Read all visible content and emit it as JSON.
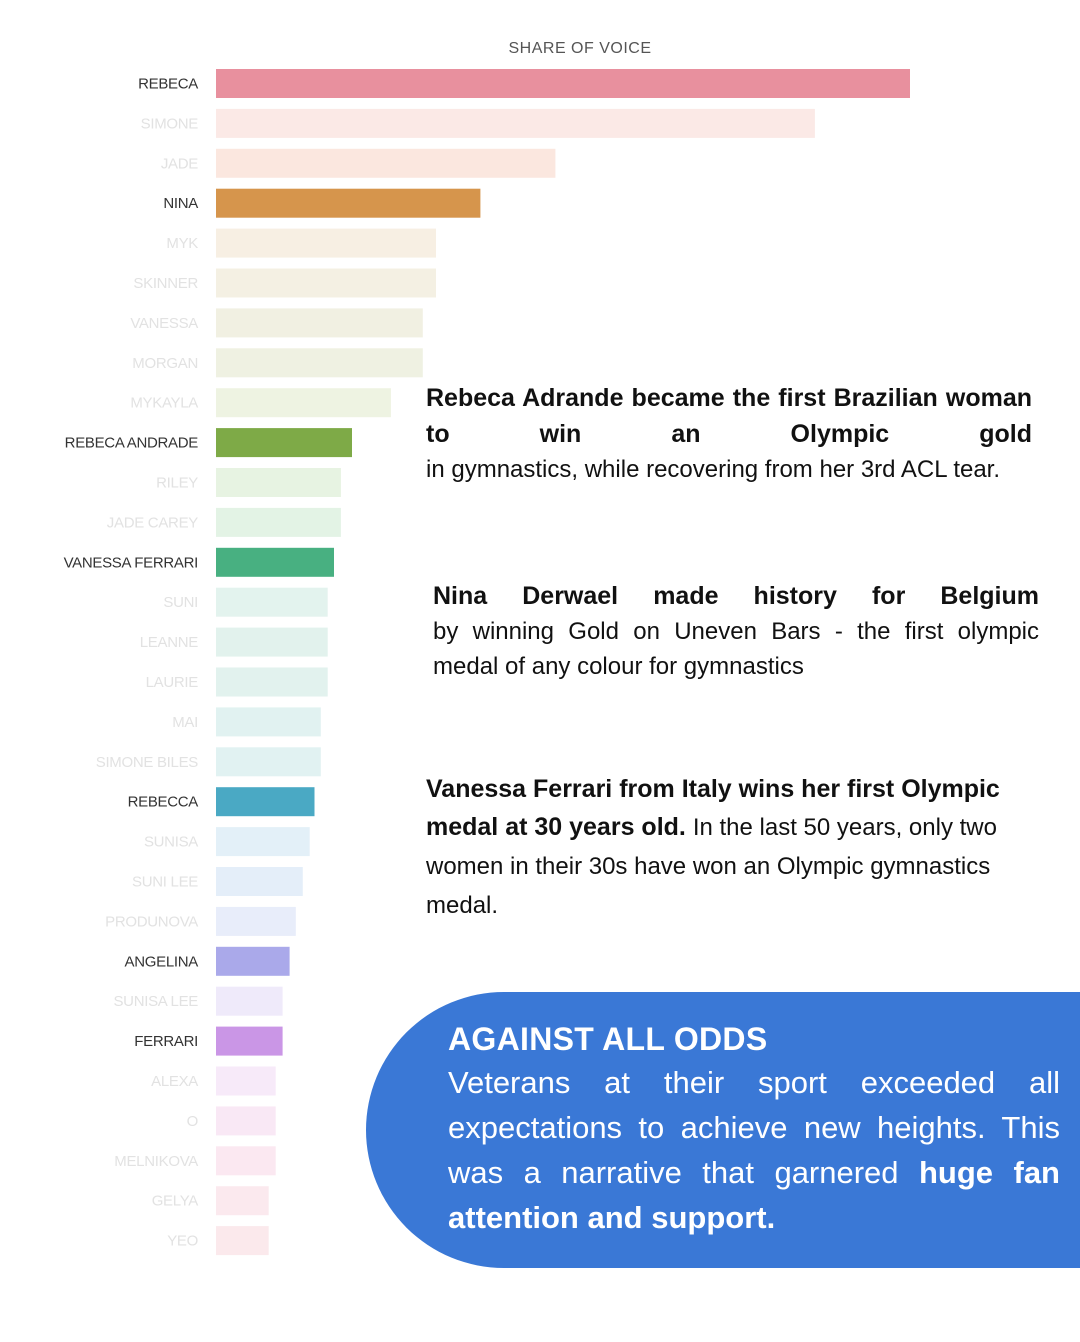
{
  "chart_data": {
    "type": "bar",
    "orientation": "horizontal",
    "title": "SHARE OF VOICE",
    "xlim": [
      0,
      100
    ],
    "grid": false,
    "categories": [
      "REBECA",
      "SIMONE",
      "JADE",
      "NINA",
      "MYK",
      "SKINNER",
      "VANESSA",
      "MORGAN",
      "MYKAYLA",
      "REBECA ANDRADE",
      "RILEY",
      "JADE CAREY",
      "VANESSA FERRARI",
      "SUNI",
      "LEANNE",
      "LAURIE",
      "MAI",
      "SIMONE BILES",
      "REBECCA",
      "SUNISA",
      "SUNI LEE",
      "PRODUNOVA",
      "ANGELINA",
      "SUNISA LEE",
      "FERRARI",
      "ALEXA",
      "O",
      "MELNIKOVA",
      "GELYA",
      "YEO"
    ],
    "values": [
      100,
      86.3,
      48.9,
      38.1,
      31.7,
      31.7,
      29.8,
      29.8,
      25.2,
      19.6,
      18.0,
      18.0,
      17.0,
      16.1,
      16.1,
      16.1,
      15.1,
      15.1,
      14.2,
      13.5,
      12.5,
      11.5,
      10.6,
      9.6,
      9.6,
      8.6,
      8.6,
      8.6,
      7.6,
      7.6
    ],
    "highlighted": [
      true,
      false,
      false,
      true,
      false,
      false,
      false,
      false,
      false,
      true,
      false,
      false,
      true,
      false,
      false,
      false,
      false,
      false,
      true,
      false,
      false,
      false,
      true,
      false,
      true,
      false,
      false,
      false,
      false,
      false
    ],
    "colors": [
      "#e8909e",
      "#fbe9e6",
      "#fbe7df",
      "#d6954c",
      "#f7efe3",
      "#f4f0e3",
      "#f1f0e2",
      "#eff1e2",
      "#eef3e2",
      "#7eaa47",
      "#e7f3e2",
      "#e3f3e5",
      "#48b081",
      "#e3f3ee",
      "#e2f2ed",
      "#e2f2ee",
      "#e1f2f1",
      "#e1f2f2",
      "#4aa9c4",
      "#e3f0f8",
      "#e4eef9",
      "#e8edfa",
      "#aaa9ea",
      "#efeafa",
      "#ca96e6",
      "#f7eaf9",
      "#f9e8f5",
      "#fbe8f1",
      "#fbe9ee",
      "#fbe9ec"
    ],
    "label_colors": {
      "highlighted": "#333333",
      "muted": "#e2e2e2"
    }
  },
  "notes": {
    "rebeca": {
      "lead": "Rebeca Adrande became the first Brazilian woman to win an Olympic gold",
      "rest": "in gymnastics, while recovering from her 3rd ACL tear."
    },
    "nina": {
      "lead": "Nina Derwael made history for Belgium",
      "rest": "by winning Gold on Uneven Bars - the first olympic medal of any colour for gymnastics"
    },
    "vanessa": {
      "lead": "Vanessa Ferrari from Italy wins her first Olympic medal at 30 years old.",
      "rest": "In the last 50 years, only two women in their 30s have won an Olympic gymnastics medal."
    }
  },
  "callout": {
    "heading": "AGAINST ALL ODDS",
    "body": "Veterans at their sport exceeded all expectations to achieve new heights. This was a narrative that garnered",
    "emphasis": "huge fan attention and support.",
    "background": "#3a78d6"
  }
}
